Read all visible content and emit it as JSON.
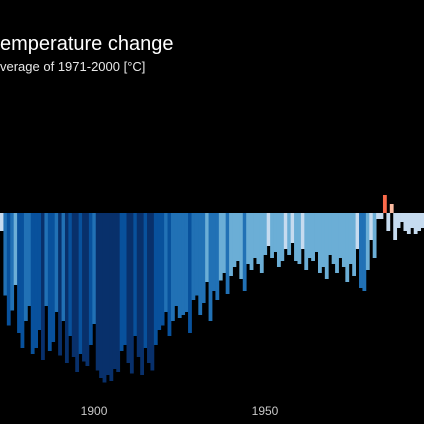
{
  "chart_data": {
    "type": "bar",
    "title": "emperature change",
    "subtitle": "verage of 1971-2000  [°C]",
    "x_tick_labels": [
      "1900",
      "1950"
    ],
    "x_ticks": [
      1900,
      1950
    ],
    "xlim": [
      1872.5,
      1996.5
    ],
    "ylim": [
      -1.35,
      0.15
    ],
    "baseline": 0,
    "grid": false,
    "legend": "none",
    "colors": {
      "background": "#000000",
      "cold_darkest": "#08306b",
      "cold_dark": "#08519c",
      "cold_mid": "#2171b5",
      "cold_light": "#6baed6",
      "cold_pale": "#c6dbef",
      "warm_pale": "#fcbba1",
      "warm": "#fb6a4a"
    },
    "years": [
      1873,
      1874,
      1875,
      1876,
      1877,
      1878,
      1879,
      1880,
      1881,
      1882,
      1883,
      1884,
      1885,
      1886,
      1887,
      1888,
      1889,
      1890,
      1891,
      1892,
      1893,
      1894,
      1895,
      1896,
      1897,
      1898,
      1899,
      1900,
      1901,
      1902,
      1903,
      1904,
      1905,
      1906,
      1907,
      1908,
      1909,
      1910,
      1911,
      1912,
      1913,
      1914,
      1915,
      1916,
      1917,
      1918,
      1919,
      1920,
      1921,
      1922,
      1923,
      1924,
      1925,
      1926,
      1927,
      1928,
      1929,
      1930,
      1931,
      1932,
      1933,
      1934,
      1935,
      1936,
      1937,
      1938,
      1939,
      1940,
      1941,
      1942,
      1943,
      1944,
      1945,
      1946,
      1947,
      1948,
      1949,
      1950,
      1951,
      1952,
      1953,
      1954,
      1955,
      1956,
      1957,
      1958,
      1959,
      1960,
      1961,
      1962,
      1963,
      1964,
      1965,
      1966,
      1967,
      1968,
      1969,
      1970,
      1971,
      1972,
      1973,
      1974,
      1975,
      1976,
      1977,
      1978,
      1979,
      1980,
      1981,
      1982,
      1983,
      1984,
      1985,
      1986,
      1987,
      1988,
      1989,
      1990,
      1991,
      1992,
      1993,
      1994,
      1995,
      1996
    ],
    "values": [
      -0.12,
      -0.55,
      -0.75,
      -0.65,
      -0.48,
      -0.8,
      -0.9,
      -0.72,
      -0.62,
      -0.94,
      -0.9,
      -0.78,
      -0.98,
      -0.62,
      -0.92,
      -0.86,
      -0.66,
      -0.95,
      -0.72,
      -1.0,
      -0.82,
      -0.96,
      -1.06,
      -0.94,
      -0.99,
      -1.02,
      -0.88,
      -0.74,
      -1.05,
      -1.1,
      -1.13,
      -1.08,
      -1.12,
      -1.04,
      -1.06,
      -0.92,
      -0.88,
      -1.0,
      -1.07,
      -0.82,
      -0.96,
      -1.08,
      -0.9,
      -1.0,
      -1.05,
      -0.88,
      -0.78,
      -0.75,
      -0.66,
      -0.82,
      -0.72,
      -0.62,
      -0.7,
      -0.68,
      -0.66,
      -0.8,
      -0.58,
      -0.55,
      -0.68,
      -0.6,
      -0.46,
      -0.72,
      -0.52,
      -0.58,
      -0.45,
      -0.4,
      -0.54,
      -0.42,
      -0.36,
      -0.32,
      -0.44,
      -0.52,
      -0.34,
      -0.38,
      -0.3,
      -0.34,
      -0.4,
      -0.28,
      -0.22,
      -0.3,
      -0.26,
      -0.36,
      -0.32,
      -0.24,
      -0.28,
      -0.2,
      -0.32,
      -0.34,
      -0.24,
      -0.38,
      -0.3,
      -0.32,
      -0.26,
      -0.4,
      -0.36,
      -0.44,
      -0.28,
      -0.34,
      -0.4,
      -0.3,
      -0.36,
      -0.46,
      -0.34,
      -0.42,
      -0.24,
      -0.5,
      -0.52,
      -0.38,
      -0.18,
      -0.3,
      -0.04,
      -0.04,
      0.12,
      -0.12,
      0.06,
      -0.18,
      -0.1,
      -0.06,
      -0.12,
      -0.14,
      -0.1,
      -0.14,
      -0.12,
      -0.1
    ]
  }
}
